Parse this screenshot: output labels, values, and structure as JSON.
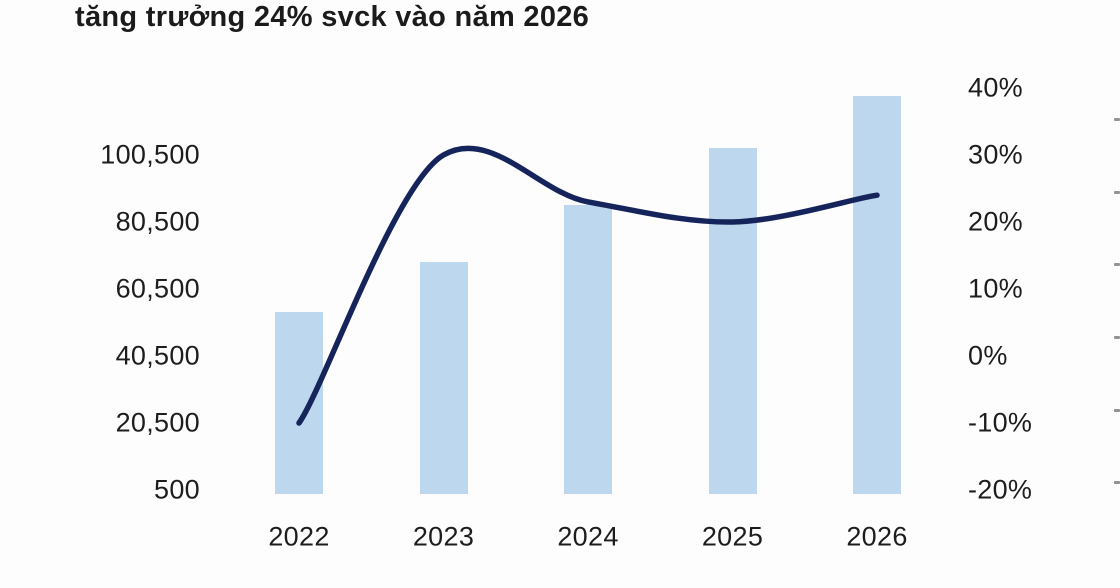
{
  "chart_data": {
    "type": "combo",
    "title": "tăng trưởng 24% svck vào năm 2026",
    "categories": [
      "2022",
      "2023",
      "2024",
      "2025",
      "2026"
    ],
    "series": [
      {
        "name": "value-bars",
        "type": "bar",
        "axis": "left",
        "values": [
          53500,
          68500,
          85500,
          102500,
          118000
        ]
      },
      {
        "name": "growth-line",
        "type": "line",
        "axis": "right",
        "values": [
          -10,
          30,
          23,
          20,
          24
        ]
      }
    ],
    "left_axis": {
      "labels": [
        "100,500",
        "80,500",
        "60,500",
        "40,500",
        "20,500",
        "500"
      ],
      "ylim": [
        500,
        120500
      ],
      "tick_step": 20000
    },
    "right_axis": {
      "labels": [
        "40%",
        "30%",
        "20%",
        "10%",
        "0%",
        "-10%",
        "-20%"
      ],
      "ylim": [
        -20,
        40
      ],
      "tick_step": 10
    },
    "grid": false,
    "legend": false,
    "colors": {
      "bar": "#bdd7ee",
      "line": "#16245c",
      "text": "#1d1d1d"
    }
  }
}
